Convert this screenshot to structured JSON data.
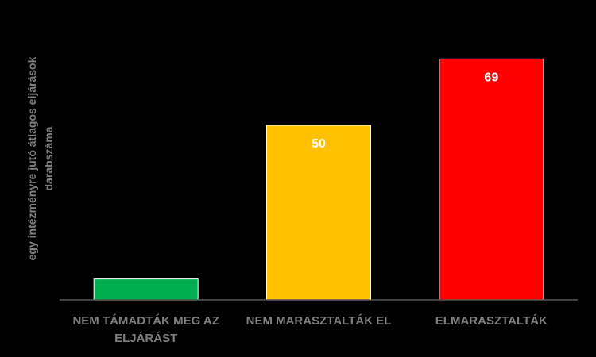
{
  "chart_data": {
    "type": "bar",
    "title": "",
    "xlabel": "",
    "ylabel_lines": [
      "egy intézményre jutó átlagos eljárások",
      "darabszáma"
    ],
    "categories": [
      [
        "NEM TÁMADTÁK MEG AZ",
        "ELJÁRÁST"
      ],
      [
        "NEM MARASZTALTÁK EL"
      ],
      [
        "ELMARASZTALTÁK"
      ]
    ],
    "values": [
      6,
      50,
      69
    ],
    "data_labels": [
      "",
      "50",
      "69"
    ],
    "colors": [
      "#00b050",
      "#ffc000",
      "#ff0000"
    ],
    "ylim": [
      0,
      70
    ],
    "grid": false,
    "legend": "none"
  },
  "colors": {
    "background": "#000000",
    "axis": "#595959",
    "label_text": "#7f7f7f",
    "data_label_text": "#ffffff"
  }
}
